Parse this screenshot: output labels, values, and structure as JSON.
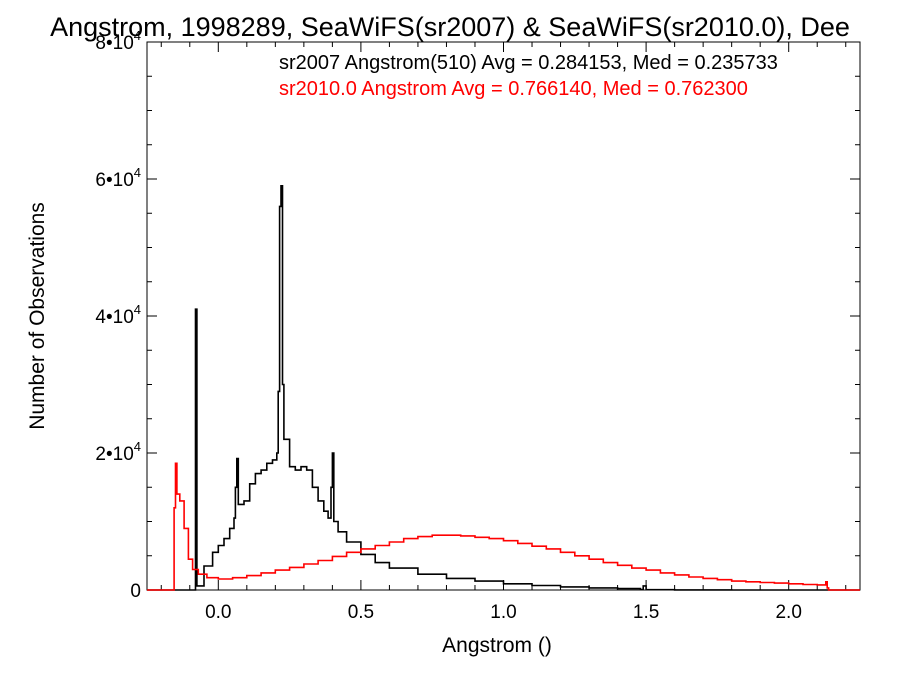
{
  "chart_data": {
    "type": "line",
    "title": "Angstrom, 1998289, SeaWiFS(sr2007) & SeaWiFS(sr2010.0), Dee",
    "xlabel": "Angstrom ()",
    "ylabel": "Number of Observations",
    "xlim": [
      -0.25,
      2.25
    ],
    "ylim": [
      0,
      80000
    ],
    "x_ticks": [
      0.0,
      0.5,
      1.0,
      1.5,
      2.0
    ],
    "x_tick_labels": [
      "0.0",
      "0.5",
      "1.0",
      "1.5",
      "2.0"
    ],
    "y_ticks": [
      0,
      20000,
      40000,
      60000,
      80000
    ],
    "y_tick_labels": [
      {
        "mantissa": "0",
        "exp": ""
      },
      {
        "mantissa": "2•10",
        "exp": "4"
      },
      {
        "mantissa": "4•10",
        "exp": "4"
      },
      {
        "mantissa": "6•10",
        "exp": "4"
      },
      {
        "mantissa": "8•10",
        "exp": "4"
      }
    ],
    "grid": false,
    "step": "histogram",
    "annotations": [
      {
        "text": "sr2007 Angstrom(510) Avg = 0.284153, Med = 0.235733",
        "color": "#000000"
      },
      {
        "text": "sr2010.0 Angstrom Avg = 0.766140, Med = 0.762300",
        "color": "#ff0000"
      }
    ],
    "series": [
      {
        "color": "#000000",
        "points": [
          [
            -0.25,
            0
          ],
          [
            -0.085,
            0
          ],
          [
            -0.08,
            41000
          ],
          [
            -0.075,
            600
          ],
          [
            -0.05,
            3500
          ],
          [
            -0.02,
            5500
          ],
          [
            0.0,
            6500
          ],
          [
            0.02,
            7500
          ],
          [
            0.04,
            9000
          ],
          [
            0.055,
            10500
          ],
          [
            0.06,
            15000
          ],
          [
            0.065,
            19200
          ],
          [
            0.07,
            12500
          ],
          [
            0.09,
            13000
          ],
          [
            0.11,
            15500
          ],
          [
            0.13,
            17000
          ],
          [
            0.15,
            17500
          ],
          [
            0.17,
            18500
          ],
          [
            0.19,
            19000
          ],
          [
            0.205,
            20000
          ],
          [
            0.21,
            29000
          ],
          [
            0.215,
            56000
          ],
          [
            0.22,
            59000
          ],
          [
            0.225,
            30000
          ],
          [
            0.23,
            22000
          ],
          [
            0.25,
            18000
          ],
          [
            0.27,
            17500
          ],
          [
            0.29,
            18000
          ],
          [
            0.31,
            17500
          ],
          [
            0.33,
            15000
          ],
          [
            0.35,
            13000
          ],
          [
            0.37,
            11500
          ],
          [
            0.385,
            10500
          ],
          [
            0.395,
            15000
          ],
          [
            0.4,
            20000
          ],
          [
            0.405,
            10000
          ],
          [
            0.42,
            8500
          ],
          [
            0.45,
            7000
          ],
          [
            0.5,
            5200
          ],
          [
            0.55,
            4000
          ],
          [
            0.6,
            3200
          ],
          [
            0.7,
            2300
          ],
          [
            0.8,
            1700
          ],
          [
            0.9,
            1300
          ],
          [
            1.0,
            900
          ],
          [
            1.1,
            650
          ],
          [
            1.2,
            450
          ],
          [
            1.3,
            300
          ],
          [
            1.4,
            200
          ],
          [
            1.48,
            80
          ],
          [
            1.49,
            600
          ],
          [
            1.5,
            50
          ],
          [
            1.6,
            20
          ],
          [
            1.8,
            0
          ],
          [
            2.25,
            0
          ]
        ]
      },
      {
        "color": "#ff0000",
        "points": [
          [
            -0.25,
            0
          ],
          [
            -0.16,
            0
          ],
          [
            -0.155,
            12000
          ],
          [
            -0.15,
            18500
          ],
          [
            -0.145,
            14000
          ],
          [
            -0.135,
            13000
          ],
          [
            -0.12,
            9000
          ],
          [
            -0.105,
            4500
          ],
          [
            -0.09,
            3000
          ],
          [
            -0.07,
            2300
          ],
          [
            -0.04,
            1800
          ],
          [
            0.0,
            1600
          ],
          [
            0.05,
            1800
          ],
          [
            0.1,
            2100
          ],
          [
            0.15,
            2500
          ],
          [
            0.2,
            2900
          ],
          [
            0.25,
            3300
          ],
          [
            0.3,
            3800
          ],
          [
            0.35,
            4300
          ],
          [
            0.4,
            4900
          ],
          [
            0.45,
            5500
          ],
          [
            0.5,
            6000
          ],
          [
            0.55,
            6500
          ],
          [
            0.6,
            7000
          ],
          [
            0.65,
            7500
          ],
          [
            0.7,
            7800
          ],
          [
            0.75,
            8000
          ],
          [
            0.8,
            8000
          ],
          [
            0.85,
            7900
          ],
          [
            0.9,
            7700
          ],
          [
            0.95,
            7500
          ],
          [
            1.0,
            7200
          ],
          [
            1.05,
            6800
          ],
          [
            1.1,
            6400
          ],
          [
            1.15,
            6000
          ],
          [
            1.2,
            5500
          ],
          [
            1.25,
            5000
          ],
          [
            1.3,
            4500
          ],
          [
            1.35,
            4000
          ],
          [
            1.4,
            3600
          ],
          [
            1.45,
            3200
          ],
          [
            1.5,
            2900
          ],
          [
            1.55,
            2500
          ],
          [
            1.6,
            2200
          ],
          [
            1.65,
            1900
          ],
          [
            1.7,
            1700
          ],
          [
            1.75,
            1500
          ],
          [
            1.8,
            1300
          ],
          [
            1.85,
            1200
          ],
          [
            1.9,
            1100
          ],
          [
            1.95,
            1000
          ],
          [
            2.0,
            900
          ],
          [
            2.05,
            800
          ],
          [
            2.1,
            750
          ],
          [
            2.13,
            1200
          ],
          [
            2.135,
            300
          ],
          [
            2.14,
            0
          ],
          [
            2.25,
            0
          ]
        ]
      }
    ]
  }
}
